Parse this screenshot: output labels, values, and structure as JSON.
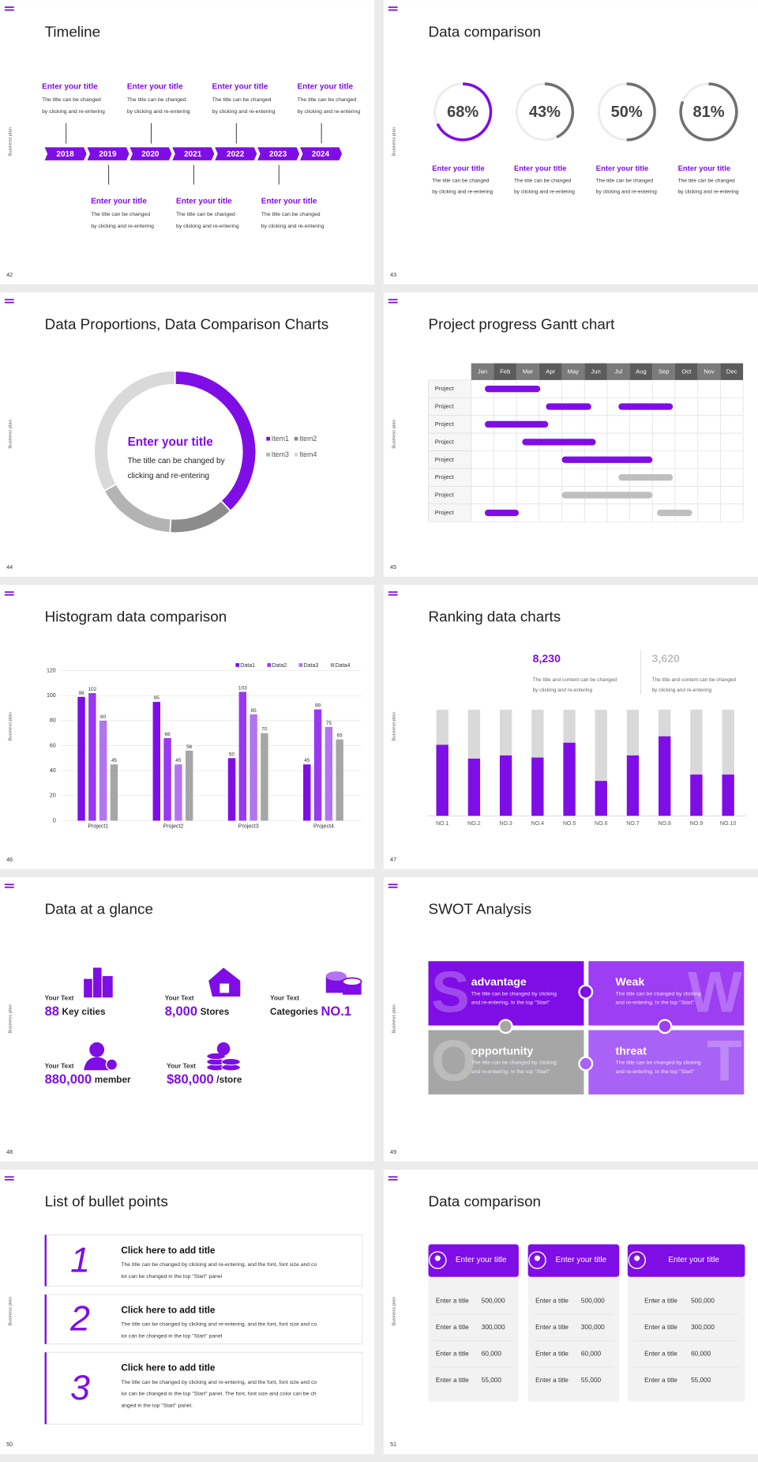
{
  "side_label": "Business plan",
  "slides": [
    {
      "number": "42",
      "title": "Timeline",
      "years": [
        "2018",
        "2019",
        "2020",
        "2021",
        "2022",
        "2023",
        "2024"
      ],
      "events": [
        {
          "title": "Enter your title",
          "text": [
            "The title can be changed",
            "by clicking and re-entering"
          ]
        },
        {
          "title": "Enter your title",
          "text": [
            "The title can be changed",
            "by clicking and re-entering"
          ]
        },
        {
          "title": "Enter your title",
          "text": [
            "The title can be changed",
            "by clicking and re-entering"
          ]
        },
        {
          "title": "Enter your title",
          "text": [
            "The title can be changed",
            "by clicking and re-entering"
          ]
        },
        {
          "title": "Enter your title",
          "text": [
            "The title can be changed",
            "by clicking and re-entering"
          ]
        },
        {
          "title": "Enter your title",
          "text": [
            "The title can be changed",
            "by clicking and re-entering"
          ]
        },
        {
          "title": "Enter your title",
          "text": [
            "The title can be changed",
            "by clicking and re-entering"
          ]
        }
      ]
    },
    {
      "number": "43",
      "title": "Data comparison",
      "rings": [
        {
          "value": 68,
          "label": "68%",
          "color": "#7f0de6",
          "title": "Enter your title",
          "text": [
            "The title can be changed",
            "by clicking and re-entering"
          ]
        },
        {
          "value": 43,
          "label": "43%",
          "color": "#707070",
          "title": "Enter your title",
          "text": [
            "The title can be changed",
            "by clicking and re-entering"
          ]
        },
        {
          "value": 50,
          "label": "50%",
          "color": "#707070",
          "title": "Enter your title",
          "text": [
            "The title can be changed",
            "by clicking and re-entering"
          ]
        },
        {
          "value": 81,
          "label": "81%",
          "color": "#707070",
          "title": "Enter your title",
          "text": [
            "The title can be changed",
            "by clicking and re-entering"
          ]
        }
      ]
    },
    {
      "number": "44",
      "title": "Data Proportions, Data Comparison Charts",
      "chart_data": {
        "type": "donut",
        "heading": "Enter your title",
        "text": [
          "The title can be changed by",
          "clicking and re-entering"
        ],
        "categories": [
          "Item1",
          "Item2",
          "Item3",
          "Item4"
        ],
        "values": [
          38,
          13,
          16,
          33
        ],
        "colors": [
          "#7f0de6",
          "#8c8c8c",
          "#b3b3b3",
          "#d9d9d9"
        ]
      }
    },
    {
      "number": "45",
      "title": "Project progress Gantt chart",
      "months": [
        "Jan",
        "Feb",
        "Mar",
        "Apr",
        "May",
        "Jun",
        "Jul",
        "Aug",
        "Sep",
        "Oct",
        "Nov",
        "Dec"
      ],
      "rows": [
        {
          "label": "Project",
          "bars": [
            {
              "start": 0.6,
              "end": 3.05,
              "color": "#7f0de6"
            }
          ]
        },
        {
          "label": "Project",
          "bars": [
            {
              "start": 3.3,
              "end": 5.3,
              "color": "#7f0de6"
            },
            {
              "start": 6.5,
              "end": 8.9,
              "color": "#7f0de6"
            }
          ]
        },
        {
          "label": "Project",
          "bars": [
            {
              "start": 0.6,
              "end": 3.4,
              "color": "#7f0de6"
            }
          ]
        },
        {
          "label": "Project",
          "bars": [
            {
              "start": 2.25,
              "end": 5.5,
              "color": "#7f0de6"
            }
          ]
        },
        {
          "label": "Project",
          "bars": [
            {
              "start": 4.0,
              "end": 8.0,
              "color": "#7f0de6"
            }
          ]
        },
        {
          "label": "Project",
          "bars": [
            {
              "start": 6.5,
              "end": 8.9,
              "color": "#bfbfbf"
            }
          ]
        },
        {
          "label": "Project",
          "bars": [
            {
              "start": 4.0,
              "end": 8.0,
              "color": "#bfbfbf"
            }
          ]
        },
        {
          "label": "Project",
          "bars": [
            {
              "start": 0.6,
              "end": 2.1,
              "color": "#7f0de6"
            },
            {
              "start": 8.2,
              "end": 9.75,
              "color": "#bfbfbf"
            }
          ]
        }
      ]
    },
    {
      "number": "46",
      "title": "Histogram data comparison",
      "chart_data": {
        "type": "bar",
        "categories": [
          "Project1",
          "Project2",
          "Project3",
          "Project4"
        ],
        "series": [
          {
            "name": "Data1",
            "color": "#7f0de6",
            "values": [
              99,
              95,
              50,
              45
            ]
          },
          {
            "name": "Data2",
            "color": "#9a37f0",
            "values": [
              102,
              66,
              103,
              89
            ]
          },
          {
            "name": "Data3",
            "color": "#b374f3",
            "values": [
              80,
              45,
              85,
              75
            ]
          },
          {
            "name": "Data4",
            "color": "#a6a6a6",
            "values": [
              45,
              56,
              70,
              65
            ]
          }
        ],
        "ylim": [
          0,
          120
        ],
        "yticks": [
          0,
          20,
          40,
          60,
          80,
          100,
          120
        ],
        "grid": true
      }
    },
    {
      "number": "47",
      "title": "Ranking data charts",
      "stats": [
        {
          "value": "8,230",
          "color": "#7f0de6",
          "text": [
            "The title and content can be changed",
            "by clicking and re-entering"
          ]
        },
        {
          "value": "3,620",
          "color": "#bfbfbf",
          "text": [
            "The title and content can be changed",
            "by clicking and re-entering"
          ]
        }
      ],
      "chart_data": {
        "type": "bar",
        "categories": [
          "NO.1",
          "NO.2",
          "NO.3",
          "NO.4",
          "NO.5",
          "NO.6",
          "NO.7",
          "NO.8",
          "NO.9",
          "NO.10"
        ],
        "values": [
          67,
          54,
          57,
          55,
          69,
          33,
          57,
          75,
          39,
          39
        ],
        "color": "#7f0de6",
        "ylim": [
          0,
          100
        ]
      }
    },
    {
      "number": "48",
      "title": "Data at a glance",
      "items": [
        {
          "label": "Your Text",
          "parts": [
            {
              "text": "88",
              "emphasis": true
            },
            {
              "text": "Key cities",
              "emphasis": false
            }
          ]
        },
        {
          "label": "Your Text",
          "parts": [
            {
              "text": "8,000",
              "emphasis": true
            },
            {
              "text": "Stores",
              "emphasis": false
            }
          ]
        },
        {
          "label": "Your Text",
          "parts": [
            {
              "text": "Categories",
              "emphasis": false
            },
            {
              "text": "NO.1",
              "emphasis": true
            }
          ]
        },
        {
          "label": "Your Text",
          "parts": [
            {
              "text": "880,000",
              "emphasis": true
            },
            {
              "text": "member",
              "emphasis": false
            }
          ]
        },
        {
          "label": "Your Text",
          "parts": [
            {
              "text": "$80,000",
              "emphasis": true
            },
            {
              "text": "/store",
              "emphasis": false
            }
          ]
        }
      ]
    },
    {
      "number": "49",
      "title": "SWOT Analysis",
      "cells": [
        {
          "letter": "S",
          "title": "advantage",
          "color": "#7f0de6",
          "text": [
            "The title can be changed by clicking",
            "and re-entering. In the top \"Start\""
          ]
        },
        {
          "letter": "W",
          "title": "Weak",
          "color": "#9d3ef2",
          "text": [
            "The title can be changed by clicking",
            "and re-entering. In the top \"Start\""
          ]
        },
        {
          "letter": "O",
          "title": "opportunity",
          "color": "#a6a6a6",
          "text": [
            "The title can be changed by clicking",
            "and re-entering. In the top \"Start\""
          ]
        },
        {
          "letter": "T",
          "title": "threat",
          "color": "#a862f5",
          "text": [
            "The title can be changed by clicking",
            "and re-entering. In the top \"Start\""
          ]
        }
      ]
    },
    {
      "number": "50",
      "title": "List of bullet points",
      "bullets": [
        {
          "number": "1",
          "title": "Click here to add title",
          "text": [
            "The title can be changed by clicking and re-entering, and the font, font size and co",
            "lor can be changed in the top \"Start\" panel"
          ]
        },
        {
          "number": "2",
          "title": "Click here to add title",
          "text": [
            "The title can be changed by clicking and re-entering, and the font, font size and co",
            "lor can be changed in the top \"Start\" panel"
          ]
        },
        {
          "number": "3",
          "title": "Click here to add title",
          "text": [
            "The title can be changed by clicking and re-entering, and the font, font size and co",
            "lor can be changed in the top \"Start\" panel. The font, font size and color can be ch",
            "anged in the top \"Start\" panel."
          ]
        }
      ]
    },
    {
      "number": "51",
      "title": "Data comparison",
      "cards": [
        {
          "title": "Enter your title",
          "rows": [
            [
              "Enter a title",
              "500,000"
            ],
            [
              "Enter a title",
              "300,000"
            ],
            [
              "Enter a title",
              "60,000"
            ],
            [
              "Enter a title",
              "55,000"
            ]
          ]
        },
        {
          "title": "Enter your title",
          "rows": [
            [
              "Enter a title",
              "500,000"
            ],
            [
              "Enter a title",
              "300,000"
            ],
            [
              "Enter a title",
              "60,000"
            ],
            [
              "Enter a title",
              "55,000"
            ]
          ]
        },
        {
          "title": "Enter your title",
          "rows": [
            [
              "Enter a title",
              "500,000"
            ],
            [
              "Enter a title",
              "300,000"
            ],
            [
              "Enter a title",
              "60,000"
            ],
            [
              "Enter a title",
              "55,000"
            ]
          ]
        }
      ]
    }
  ]
}
